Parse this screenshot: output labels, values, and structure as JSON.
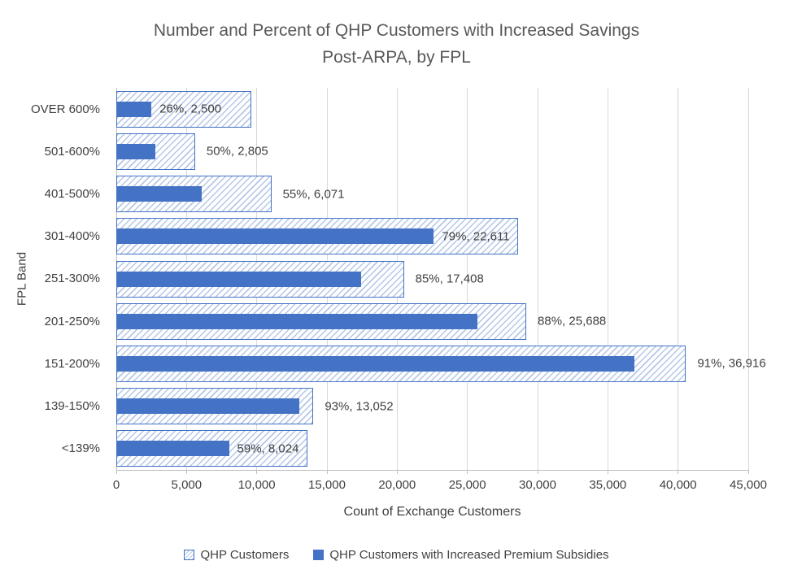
{
  "chart_data": {
    "type": "bar",
    "orientation": "horizontal",
    "title": "Number and Percent of QHP Customers with Increased Savings Post-ARPA, by FPL",
    "title_lines": [
      "Number and Percent of QHP Customers with Increased Savings",
      "Post-ARPA, by FPL"
    ],
    "xlabel": "Count of Exchange Customers",
    "ylabel": "FPL Band",
    "xlim": [
      0,
      45000
    ],
    "x_ticks": [
      0,
      5000,
      10000,
      15000,
      20000,
      25000,
      30000,
      35000,
      40000,
      45000
    ],
    "x_tick_labels": [
      "0",
      "5,000",
      "10,000",
      "15,000",
      "20,000",
      "25,000",
      "30,000",
      "35,000",
      "40,000",
      "45,000"
    ],
    "grid": true,
    "legend_position": "bottom",
    "categories": [
      "OVER 600%",
      "501-600%",
      "401-500%",
      "301-400%",
      "251-300%",
      "201-250%",
      "151-200%",
      "139-150%",
      "<139%"
    ],
    "series": [
      {
        "name": "QHP Customers",
        "values_estimated_from_bar_length": true,
        "values": [
          9615,
          5610,
          11038,
          28622,
          20480,
          29191,
          40567,
          14034,
          13600
        ]
      },
      {
        "name": "QHP Customers with Increased Premium Subsidies",
        "values": [
          2500,
          2805,
          6071,
          22611,
          17408,
          25688,
          36916,
          13052,
          8024
        ]
      }
    ],
    "percents": [
      26,
      50,
      55,
      79,
      85,
      88,
      91,
      93,
      59
    ],
    "data_labels": [
      "26%, 2,500",
      "50%, 2,805",
      "55%, 6,071",
      "79%, 22,611",
      "85%, 17,408",
      "88%, 25,688",
      "91%, 36,916",
      "93%, 13,052",
      "59%, 8,024"
    ]
  },
  "colors": {
    "accent_solid": "#4472C4",
    "bar_border": "#4472C4",
    "hatch_line": "#B4C7E7",
    "hatch_bg": "#FEFEFF",
    "gridline": "#D9D9D9",
    "axis_line": "#BFBFBF",
    "text": "#404040",
    "title_text": "#595959"
  }
}
